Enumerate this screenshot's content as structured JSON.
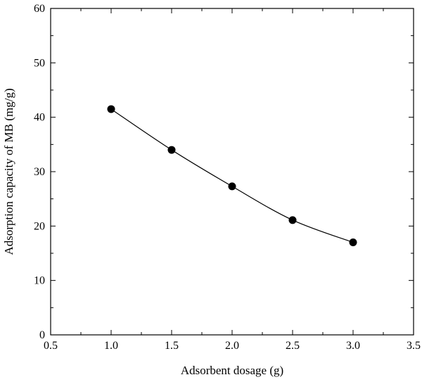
{
  "chart_data": {
    "type": "line",
    "title": "",
    "xlabel": "Adsorbent dosage (g)",
    "ylabel": "Adsorption capacity of MB (mg/g)",
    "xlim": [
      0.5,
      3.5
    ],
    "ylim": [
      0,
      60
    ],
    "x_ticks": [
      "0.5",
      "1.0",
      "1.5",
      "2.0",
      "2.5",
      "3.0",
      "3.5"
    ],
    "y_ticks": [
      "0",
      "10",
      "20",
      "30",
      "40",
      "50",
      "60"
    ],
    "grid": false,
    "legend": "none",
    "series": [
      {
        "marker": "filled-circle",
        "color": "#000000",
        "x": [
          1.0,
          1.5,
          2.0,
          2.5,
          3.0
        ],
        "y": [
          41.5,
          34.0,
          27.3,
          21.1,
          17.0
        ]
      }
    ]
  }
}
